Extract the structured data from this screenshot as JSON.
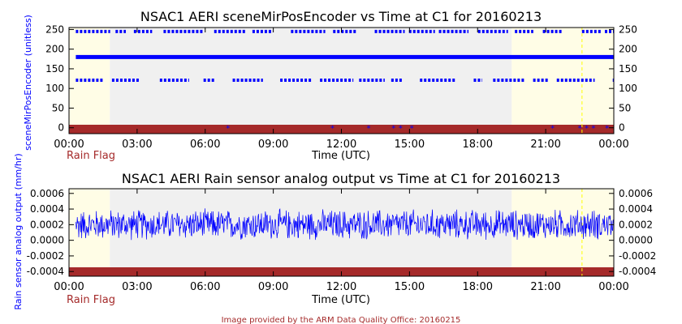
{
  "footer": "Image provided by the ARM Data Quality Office: 20160215",
  "colors": {
    "background_band": "#f0f0f0",
    "daylight_band": "#fffde6",
    "rain_flag_bar": "#a52a2a",
    "data": "#0000ff",
    "axis": "#000000",
    "marker_line": "#ffff00"
  },
  "chart_data": [
    {
      "type": "scatter",
      "title": "NSAC1 AERI sceneMirPosEncoder vs Time at C1 for 20160213",
      "xlabel": "Time (UTC)",
      "ylabel": "sceneMirPosEncoder (unitless)",
      "rain_flag_label": "Rain Flag",
      "xlim": [
        0,
        24
      ],
      "ylim": [
        -15,
        255
      ],
      "x_tick_labels": [
        "00:00",
        "03:00",
        "06:00",
        "09:00",
        "12:00",
        "15:00",
        "18:00",
        "21:00",
        "00:00"
      ],
      "y_ticks": [
        0,
        50,
        100,
        150,
        200,
        250
      ],
      "y_tick_labels": [
        "0",
        "50",
        "100",
        "150",
        "200",
        "250"
      ],
      "grid": false,
      "shaded_bands_hours": {
        "light": [
          [
            0,
            1.8
          ],
          [
            19.5,
            24
          ]
        ],
        "gray": [
          [
            1.8,
            19.5
          ]
        ]
      },
      "marker_line_hour": 22.6,
      "series": [
        {
          "values_constant": 180,
          "x_range": [
            0.3,
            24
          ],
          "style": "dense"
        },
        {
          "values_constant": 121,
          "x_range": [
            0.3,
            24
          ],
          "style": "intermittent"
        },
        {
          "values_constant": 245,
          "x_range": [
            0.3,
            24
          ],
          "style": "intermittent"
        },
        {
          "x": [
            7.0,
            11.6,
            13.2,
            14.3,
            14.6,
            15.1,
            21.3,
            22.5,
            22.8,
            23.1,
            23.7
          ],
          "y": [
            0,
            0,
            0,
            0,
            0,
            0,
            0,
            0,
            0,
            0,
            0
          ]
        }
      ]
    },
    {
      "type": "line",
      "title": "NSAC1 AERI Rain sensor analog output vs Time at C1 for 20160213",
      "xlabel": "Time (UTC)",
      "ylabel": "Rain sensor analog output (mm/hr)",
      "rain_flag_label": "Rain Flag",
      "xlim": [
        0,
        24
      ],
      "ylim": [
        -0.00046,
        0.00066
      ],
      "x_tick_labels": [
        "00:00",
        "03:00",
        "06:00",
        "09:00",
        "12:00",
        "15:00",
        "18:00",
        "21:00",
        "00:00"
      ],
      "y_ticks": [
        -0.0004,
        -0.0002,
        0.0,
        0.0002,
        0.0004,
        0.0006
      ],
      "y_tick_labels_left": [
        "-0.0004",
        "-0.0002",
        "0.0000",
        "0.0002",
        "0.0004",
        "0.0006"
      ],
      "y_tick_labels_right": [
        "-0.0004",
        "-0.0002",
        "0.0000",
        "0.0002",
        "0.0004",
        "0.0006"
      ],
      "grid": false,
      "shaded_bands_hours": {
        "light": [
          [
            0,
            1.8
          ],
          [
            19.5,
            24
          ]
        ],
        "gray": [
          [
            1.8,
            19.5
          ]
        ]
      },
      "marker_line_hour": 22.6,
      "series": [
        {
          "description_mean": 0.0002,
          "noise_amplitude": 0.00018,
          "x_range": [
            0.3,
            24
          ]
        }
      ]
    }
  ]
}
